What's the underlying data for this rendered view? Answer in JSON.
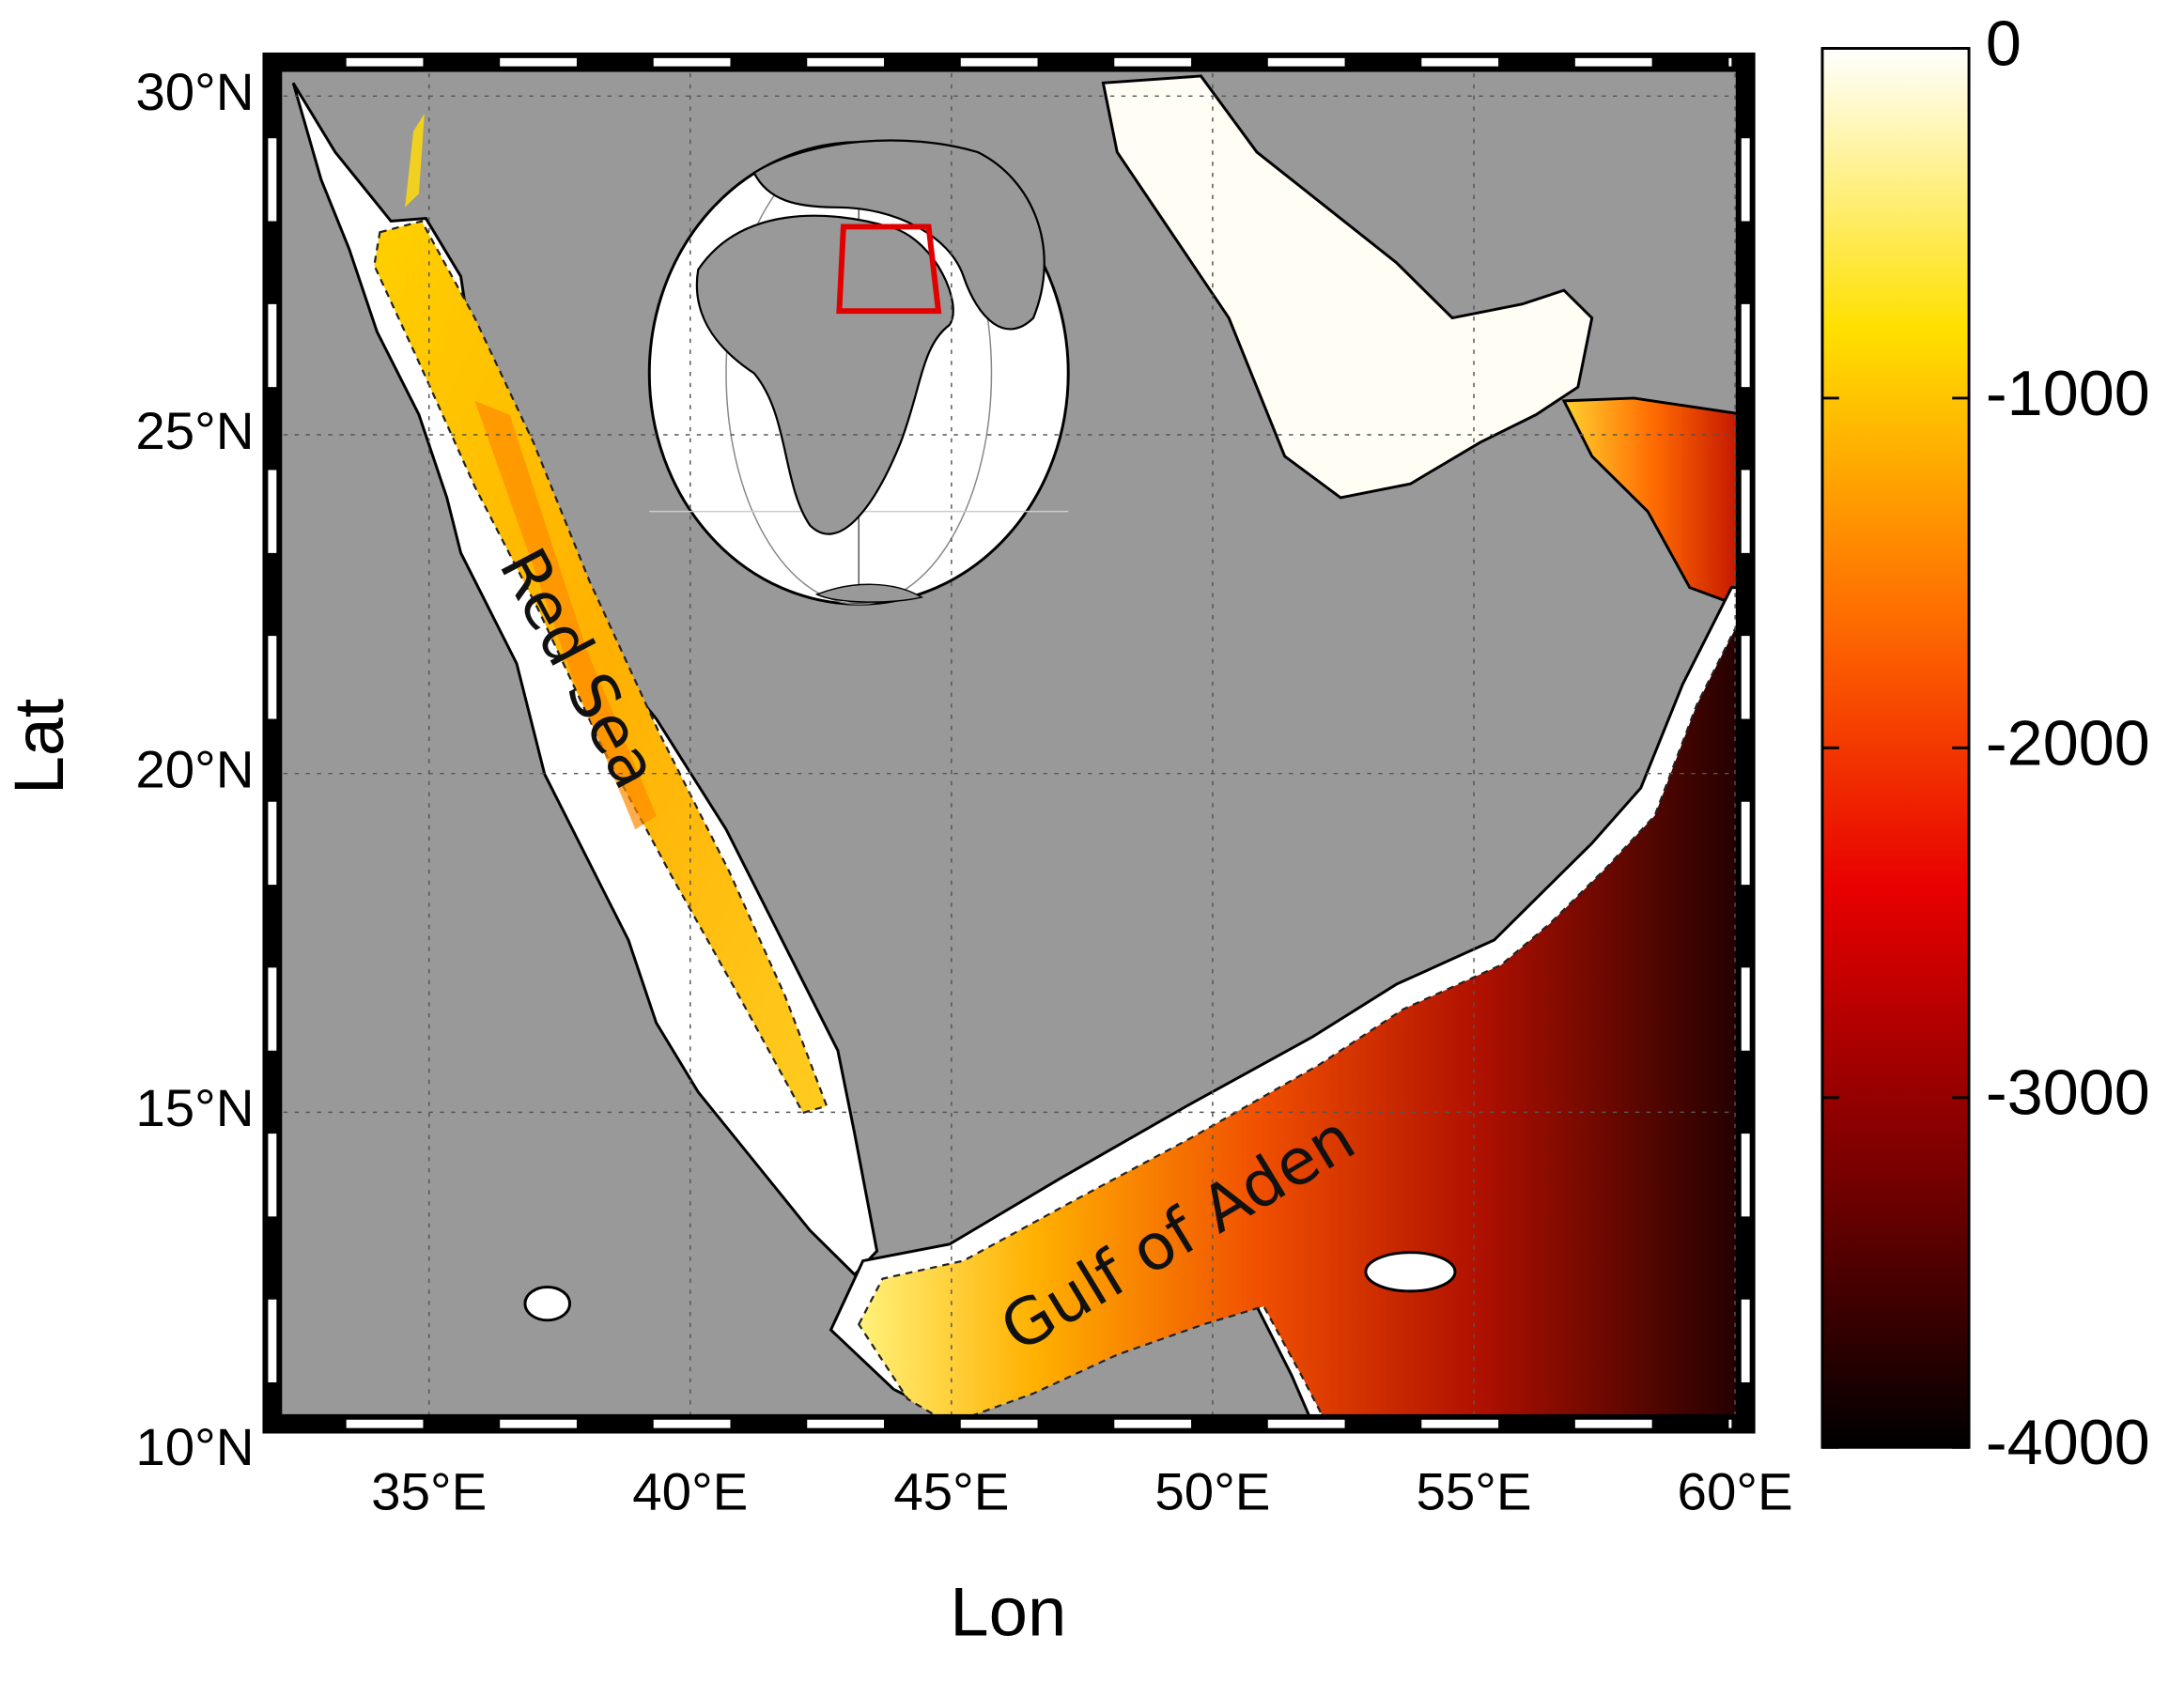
{
  "chart_data": {
    "type": "map",
    "xlabel": "Lon",
    "ylabel": "Lat",
    "xlim": [
      32,
      60.2
    ],
    "ylim": [
      10.4,
      30.5
    ],
    "xticks": [
      {
        "value": 35,
        "label": "35°E"
      },
      {
        "value": 40,
        "label": "40°E"
      },
      {
        "value": 45,
        "label": "45°E"
      },
      {
        "value": 50,
        "label": "50°E"
      },
      {
        "value": 55,
        "label": "55°E"
      },
      {
        "value": 60,
        "label": "60°E"
      }
    ],
    "yticks": [
      {
        "value": 10,
        "label": "10°N"
      },
      {
        "value": 15,
        "label": "15°N"
      },
      {
        "value": 20,
        "label": "20°N"
      },
      {
        "value": 25,
        "label": "25°N"
      },
      {
        "value": 30,
        "label": "30°N"
      }
    ],
    "grid": true,
    "colorbar": {
      "lim": [
        -4000,
        0
      ],
      "ticks": [
        0,
        -1000,
        -2000,
        -3000,
        -4000
      ],
      "colors": [
        "#000000",
        "#7a0000",
        "#e80000",
        "#ff7000",
        "#ffe000",
        "#ffffff"
      ]
    },
    "annotations": [
      {
        "text": "Red Sea"
      },
      {
        "text": "Gulf of Aden"
      }
    ]
  }
}
